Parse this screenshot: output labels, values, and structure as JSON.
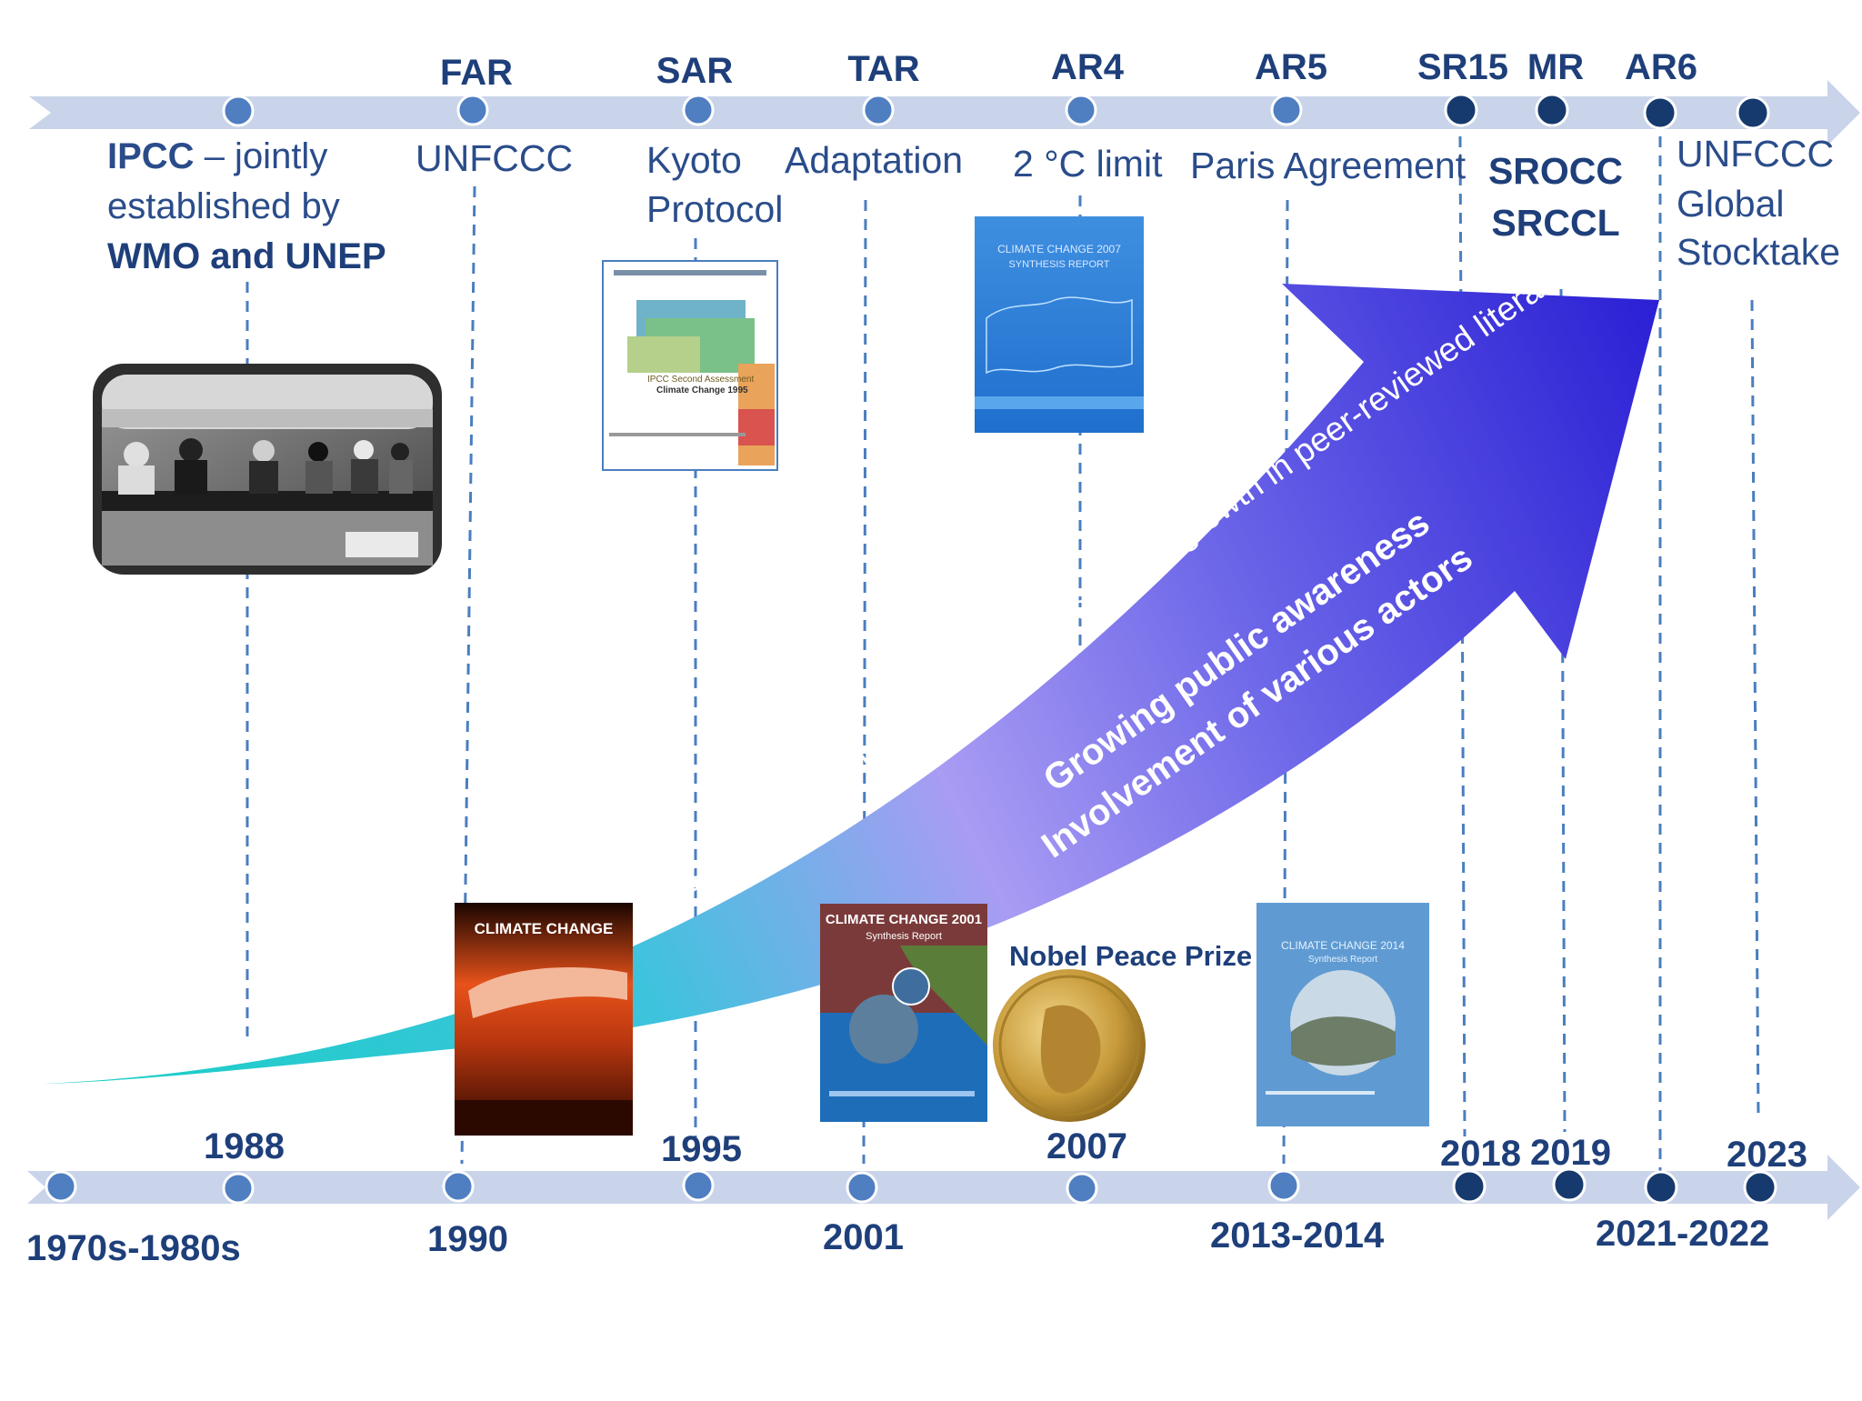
{
  "colors": {
    "band": "#c9d4ea",
    "dot_light": "#4f7ec1",
    "dot_dark": "#163a6e",
    "guide": "#4a7ebf",
    "heading": "#1e3f7a",
    "plain": "#2a4c8a",
    "arrow_start": "#1ad1c8",
    "arrow_mid": "#a79cf2",
    "arrow_end": "#2a1fd4"
  },
  "top_reports": [
    {
      "label": "FAR"
    },
    {
      "label": "SAR"
    },
    {
      "label": "TAR"
    },
    {
      "label": "AR4"
    },
    {
      "label": "AR5"
    },
    {
      "label": "SR15"
    },
    {
      "label": "MR"
    },
    {
      "label": "AR6"
    }
  ],
  "milestones": {
    "ipcc": {
      "line1_bold": "IPCC",
      "line1_rest": " –  jointly",
      "line2": "established by",
      "line3": "WMO and UNEP"
    },
    "unfccc": "UNFCCC",
    "kyoto": {
      "line1": "Kyoto",
      "line2": "Protocol"
    },
    "adaptation": "Adaptation",
    "two_degree": "2 °C limit",
    "paris": "Paris Agreement",
    "special": {
      "line1": "SROCC",
      "line2": "SRCCL"
    },
    "stocktake": {
      "line1": "UNFCCC",
      "line2": "Global",
      "line3": "Stocktake"
    }
  },
  "arrow_texts": {
    "science": "Science of climate change ( exponential growth in peer-reviewed literature)",
    "awareness": "Growing public awareness",
    "actors": "Involvement of various actors"
  },
  "report_covers": {
    "sar_title": "IPCC Second Assessment",
    "sar_subtitle": "Climate Change 1995",
    "ar4_title": "CLIMATE CHANGE 2007",
    "ar4_subtitle": "SYNTHESIS REPORT",
    "far_title": "CLIMATE CHANGE",
    "tar_title": "CLIMATE CHANGE 2001",
    "tar_subtitle": "Synthesis Report",
    "ar5_title": "CLIMATE CHANGE 2014",
    "ar5_subtitle": "Synthesis Report"
  },
  "nobel": "Nobel Peace Prize",
  "year_labels": {
    "y1970s": "1970s-1980s",
    "y1988": "1988",
    "y1990": "1990",
    "y1995": "1995",
    "y2001": "2001",
    "y2007": "2007",
    "y2013": "2013-2014",
    "y2018": "2018",
    "y2019": "2019",
    "y2021": "2021-2022",
    "y2023": "2023"
  }
}
